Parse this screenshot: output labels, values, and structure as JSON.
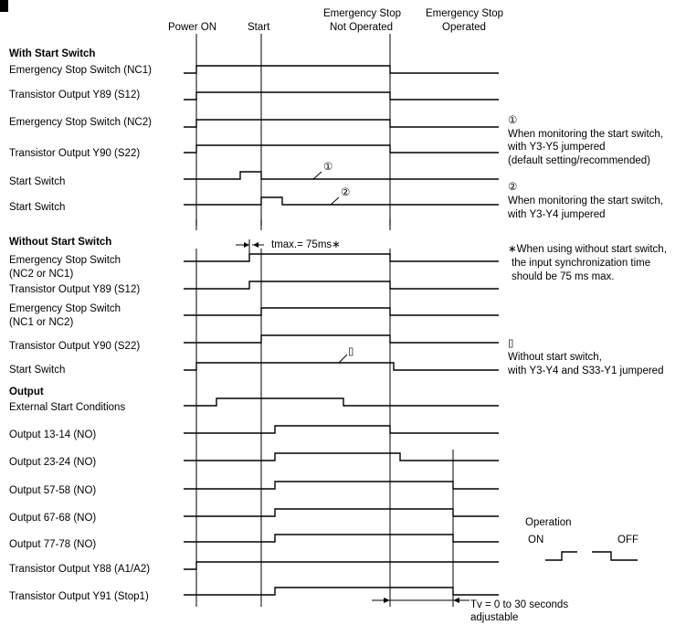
{
  "header": {
    "power_on": "Power ON",
    "start": "Start",
    "estop_not_operated_1": "Emergency Stop",
    "estop_not_operated_2": "Not Operated",
    "estop_operated_1": "Emergency Stop",
    "estop_operated_2": "Operated"
  },
  "sections": {
    "with_start": "With Start Switch",
    "without_start": "Without Start Switch",
    "output": "Output"
  },
  "rows": {
    "es_nc1": "Emergency Stop Switch (NC1)",
    "tr_y89": "Transistor Output Y89 (S12)",
    "es_nc2": "Emergency Stop Switch (NC2)",
    "tr_y90": "Transistor Output Y90 (S22)",
    "start_sw_1": "Start Switch",
    "start_sw_2": "Start Switch",
    "wo_es_1": "Emergency Stop Switch",
    "wo_es_2": "(NC2 or NC1)",
    "wo_tr_y89": "Transistor Output Y89 (S12)",
    "wo_es2_1": "Emergency Stop Switch",
    "wo_es2_2": "(NC1 or NC2)",
    "wo_tr_y90": "Transistor Output Y90 (S22)",
    "wo_start_sw": "Start Switch",
    "ext_start": "External Start Conditions",
    "out_13_14": "Output 13-14 (NO)",
    "out_23_24": "Output 23-24 (NO)",
    "out_57_58": "Output 57-58 (NO)",
    "out_67_68": "Output 67-68 (NO)",
    "out_77_78": "Output 77-78 (NO)",
    "tr_y88": "Transistor Output Y88 (A1/A2)",
    "tr_y91": "Transistor Output Y91 (Stop1)"
  },
  "markers": {
    "m1": "①",
    "m2": "②",
    "m3": "▯"
  },
  "notes": {
    "n1_mark": "①",
    "n1_line1": "When monitoring the start switch,",
    "n1_line2": "with Y3-Y5 jumpered",
    "n1_line3": "(default setting/recommended)",
    "n2_mark": "②",
    "n2_line1": "When monitoring the start switch,",
    "n2_line2": "with Y3-Y4 jumpered",
    "tmax": "tmax.= 75ms∗",
    "star_line1": "∗When using without start switch,",
    "star_line2": "the input synchronization time",
    "star_line3": "should be 75 ms max.",
    "n3_mark": "▯",
    "n3_line1": "Without start switch,",
    "n3_line2": "with Y3-Y4 and S33-Y1 jumpered",
    "tv_line1": "Tv = 0 to 30 seconds",
    "tv_line2": "adjustable"
  },
  "legend": {
    "title": "Operation",
    "on": "ON",
    "off": "OFF"
  }
}
